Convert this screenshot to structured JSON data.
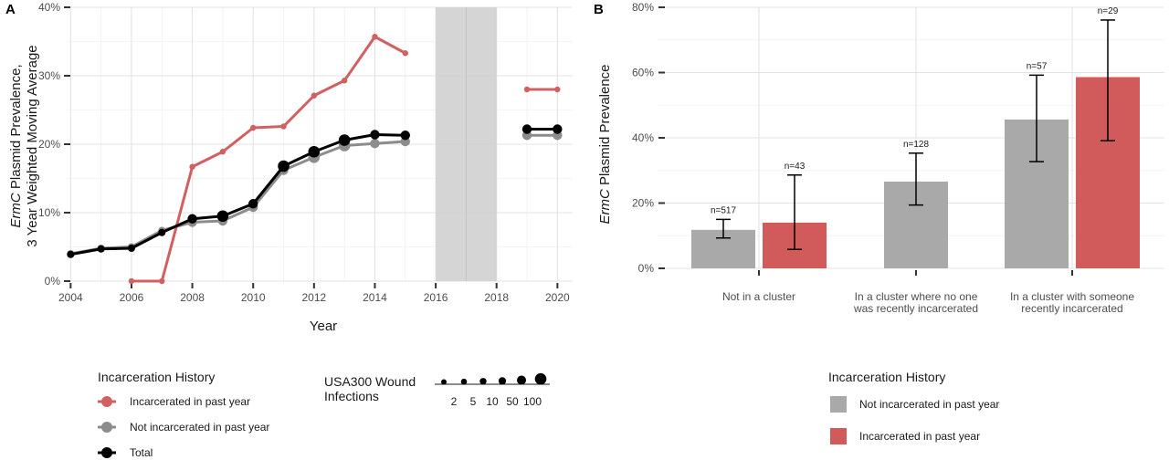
{
  "chart_data": [
    {
      "panel": "A",
      "type": "line",
      "xlabel": "Year",
      "ylabel_prefix": "ErmC",
      "ylabel_rest": " Plasmid Prevalence,",
      "ylabel_line2": "3 Year Weighted Moving Average",
      "xlim": [
        2003.9,
        2020.5
      ],
      "ylim": [
        0,
        40
      ],
      "x_ticks": [
        2004,
        2006,
        2008,
        2010,
        2012,
        2014,
        2016,
        2018,
        2020
      ],
      "x_tick_labels": [
        "2004",
        "2006",
        "2008",
        "2010",
        "2012",
        "2014",
        "2016",
        "2018",
        "2020"
      ],
      "y_ticks": [
        0,
        10,
        20,
        30,
        40
      ],
      "y_tick_labels": [
        "0%",
        "10%",
        "20%",
        "30%",
        "40%"
      ],
      "shaded_region": [
        2016,
        2018
      ],
      "series": [
        {
          "name": "Incarcerated in past year",
          "color": "#d16060",
          "segments": [
            {
              "x": [
                2006,
                2007,
                2008,
                2009,
                2010,
                2011,
                2012,
                2013,
                2014,
                2015
              ],
              "y": [
                0,
                0,
                16.7,
                18.9,
                22.4,
                22.6,
                27.1,
                29.3,
                35.7,
                33.3
              ],
              "sizes": [
                1,
                1,
                1,
                1,
                1,
                1,
                1,
                1,
                1,
                1
              ]
            },
            {
              "x": [
                2019,
                2020
              ],
              "y": [
                28.0,
                28.0
              ],
              "sizes": [
                1,
                1
              ]
            }
          ]
        },
        {
          "name": "Not incarcerated in past year",
          "color": "#8c8c8c",
          "segments": [
            {
              "x": [
                2004,
                2005,
                2006,
                2007,
                2008,
                2009,
                2010,
                2011,
                2012,
                2013,
                2014,
                2015
              ],
              "y": [
                4.0,
                4.8,
                5.0,
                7.4,
                8.6,
                8.8,
                10.8,
                16.2,
                18.1,
                19.8,
                20.1,
                20.4
              ],
              "sizes": [
                2,
                2,
                2,
                2,
                3,
                3,
                3,
                3,
                4,
                4,
                3,
                3
              ]
            },
            {
              "x": [
                2019,
                2020
              ],
              "y": [
                21.3,
                21.3
              ],
              "sizes": [
                3,
                3
              ]
            }
          ]
        },
        {
          "name": "Total",
          "color": "#000000",
          "segments": [
            {
              "x": [
                2004,
                2005,
                2006,
                2007,
                2008,
                2009,
                2010,
                2011,
                2012,
                2013,
                2014,
                2015
              ],
              "y": [
                3.9,
                4.7,
                4.8,
                7.1,
                9.1,
                9.5,
                11.3,
                16.8,
                18.9,
                20.6,
                21.4,
                21.3
              ],
              "sizes": [
                2,
                2,
                2,
                2,
                3,
                4,
                3,
                4,
                4,
                4,
                3,
                3
              ]
            },
            {
              "x": [
                2019,
                2020
              ],
              "y": [
                22.2,
                22.2
              ],
              "sizes": [
                3,
                3
              ]
            }
          ]
        }
      ],
      "legend": {
        "title": "Incarceration History",
        "entries": [
          "Incarcerated in past year",
          "Not incarcerated in past year",
          "Total"
        ],
        "size_title_line1": "USA300 Wound",
        "size_title_line2": "Infections",
        "size_labels": [
          "2",
          "5",
          "10",
          "50",
          "100"
        ]
      }
    },
    {
      "panel": "B",
      "type": "bar",
      "ylabel_prefix": "ErmC",
      "ylabel_rest": " Plasmid Prevalence",
      "ylim": [
        0,
        80
      ],
      "y_ticks": [
        0,
        20,
        40,
        60,
        80
      ],
      "y_tick_labels": [
        "0%",
        "20%",
        "40%",
        "60%",
        "80%"
      ],
      "categories": [
        [
          "Not in a cluster"
        ],
        [
          "In a cluster where no one",
          "was recently incarcerated"
        ],
        [
          "In a cluster with someone",
          "recently incarcerated"
        ]
      ],
      "bars": [
        {
          "cat": 0,
          "group": "Not incarcerated in past year",
          "value": 11.8,
          "lo": 9.3,
          "hi": 15.0,
          "n_label": "n=517"
        },
        {
          "cat": 0,
          "group": "Incarcerated in past year",
          "value": 14.0,
          "lo": 5.8,
          "hi": 28.6,
          "n_label": "n=43"
        },
        {
          "cat": 1,
          "group": "Not incarcerated in past year",
          "value": 26.6,
          "lo": 19.4,
          "hi": 35.3,
          "n_label": "n=128"
        },
        {
          "cat": 2,
          "group": "Not incarcerated in past year",
          "value": 45.6,
          "lo": 32.7,
          "hi": 59.2,
          "n_label": "n=57"
        },
        {
          "cat": 2,
          "group": "Incarcerated in past year",
          "value": 58.6,
          "lo": 39.1,
          "hi": 76.1,
          "n_label": "n=29"
        }
      ],
      "colors": {
        "Not incarcerated in past year": "#a9a9a9",
        "Incarcerated in past year": "#d15a5a"
      },
      "legend": {
        "title": "Incarceration History",
        "entries": [
          "Not incarcerated in past year",
          "Incarcerated in past year"
        ]
      }
    }
  ]
}
